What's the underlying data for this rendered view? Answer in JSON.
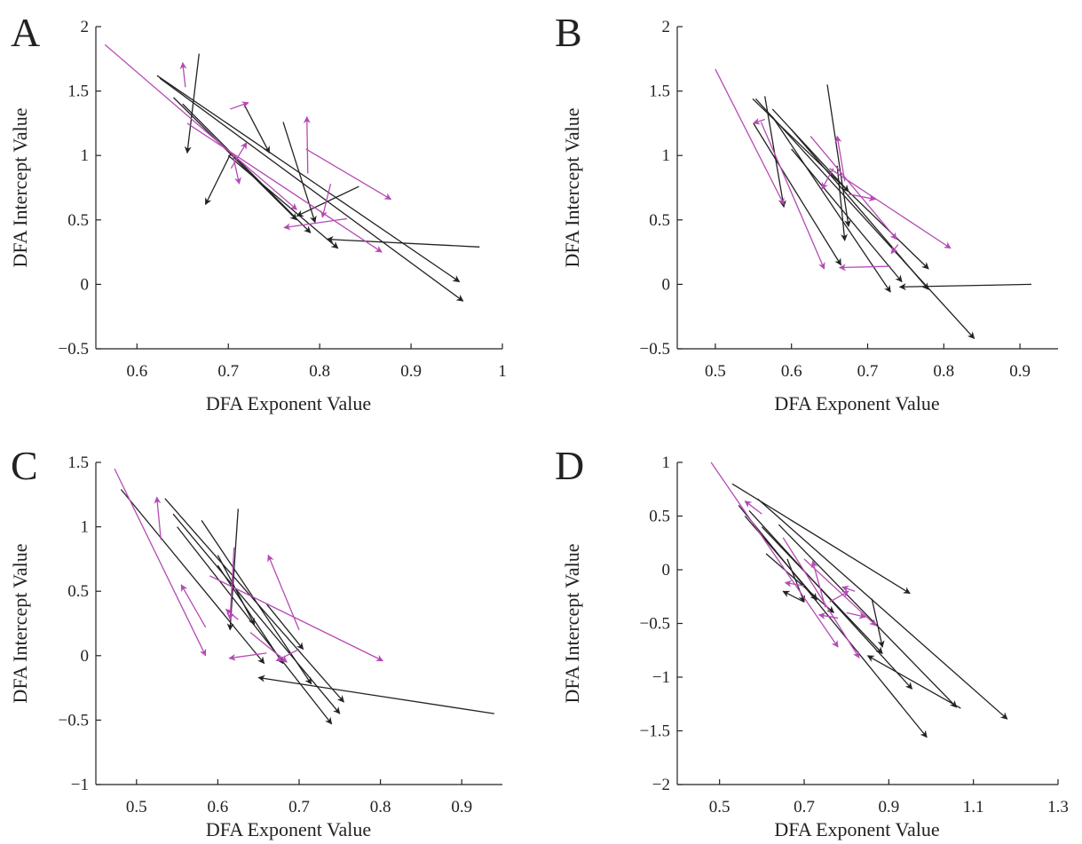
{
  "colors": {
    "black_series": "#222222",
    "magenta_series": "#b54ab5",
    "axis": "#222222"
  },
  "chart_data": [
    {
      "type": "scatter",
      "panel": "A",
      "xlabel": "DFA Exponent Value",
      "ylabel": "DFA Intercept Value",
      "xlim": [
        0.555,
        1.0
      ],
      "ylim": [
        -0.5,
        2.0
      ],
      "xticks": [
        0.6,
        0.7,
        0.8,
        0.9,
        1.0
      ],
      "xtick_labels": [
        "0.6",
        "0.7",
        "0.8",
        "0.9",
        "1"
      ],
      "yticks": [
        -0.5,
        0,
        0.5,
        1,
        1.5,
        2
      ],
      "ytick_labels": [
        "−0.5",
        "0",
        "0.5",
        "1",
        "1.5",
        "2"
      ],
      "grid": false,
      "series": [
        {
          "color": "black",
          "arrows": [
            {
              "x0": 0.622,
              "y0": 1.62,
              "x1": 0.953,
              "y1": 0.02
            },
            {
              "x0": 0.625,
              "y0": 1.6,
              "x1": 0.957,
              "y1": -0.13
            },
            {
              "x0": 0.668,
              "y0": 1.79,
              "x1": 0.655,
              "y1": 1.02
            },
            {
              "x0": 0.703,
              "y0": 1.02,
              "x1": 0.675,
              "y1": 0.62
            },
            {
              "x0": 0.717,
              "y0": 1.4,
              "x1": 0.745,
              "y1": 1.02
            },
            {
              "x0": 0.64,
              "y0": 1.45,
              "x1": 0.775,
              "y1": 0.5
            },
            {
              "x0": 0.65,
              "y0": 1.4,
              "x1": 0.79,
              "y1": 0.4
            },
            {
              "x0": 0.76,
              "y0": 1.26,
              "x1": 0.795,
              "y1": 0.48
            },
            {
              "x0": 0.843,
              "y0": 0.76,
              "x1": 0.775,
              "y1": 0.53
            },
            {
              "x0": 0.975,
              "y0": 0.29,
              "x1": 0.808,
              "y1": 0.35
            },
            {
              "x0": 0.7,
              "y0": 1.0,
              "x1": 0.82,
              "y1": 0.28
            }
          ]
        },
        {
          "color": "magenta",
          "arrows": [
            {
              "x0": 0.565,
              "y0": 1.86,
              "x1": 0.775,
              "y1": 0.58
            },
            {
              "x0": 0.653,
              "y0": 1.53,
              "x1": 0.65,
              "y1": 1.72
            },
            {
              "x0": 0.702,
              "y0": 1.36,
              "x1": 0.722,
              "y1": 1.41
            },
            {
              "x0": 0.655,
              "y0": 1.25,
              "x1": 0.868,
              "y1": 0.25
            },
            {
              "x0": 0.705,
              "y0": 1.0,
              "x1": 0.712,
              "y1": 0.78
            },
            {
              "x0": 0.703,
              "y0": 0.9,
              "x1": 0.72,
              "y1": 1.1
            },
            {
              "x0": 0.787,
              "y0": 0.86,
              "x1": 0.786,
              "y1": 1.3
            },
            {
              "x0": 0.785,
              "y0": 1.05,
              "x1": 0.878,
              "y1": 0.66
            },
            {
              "x0": 0.812,
              "y0": 0.78,
              "x1": 0.803,
              "y1": 0.52
            },
            {
              "x0": 0.83,
              "y0": 0.51,
              "x1": 0.761,
              "y1": 0.44
            }
          ]
        }
      ]
    },
    {
      "type": "scatter",
      "panel": "B",
      "xlabel": "DFA Exponent Value",
      "ylabel": "DFA Intercept Value",
      "xlim": [
        0.45,
        0.95
      ],
      "ylim": [
        -0.5,
        2.0
      ],
      "xticks": [
        0.5,
        0.6,
        0.7,
        0.8,
        0.9
      ],
      "xtick_labels": [
        "0.5",
        "0.6",
        "0.7",
        "0.8",
        "0.9"
      ],
      "yticks": [
        -0.5,
        0,
        0.5,
        1,
        1.5,
        2
      ],
      "ytick_labels": [
        "−0.5",
        "0",
        "0.5",
        "1",
        "1.5",
        "2"
      ],
      "grid": false,
      "series": [
        {
          "color": "black",
          "arrows": [
            {
              "x0": 0.553,
              "y0": 1.44,
              "x1": 0.84,
              "y1": -0.42
            },
            {
              "x0": 0.549,
              "y0": 1.44,
              "x1": 0.78,
              "y1": 0.12
            },
            {
              "x0": 0.565,
              "y0": 1.46,
              "x1": 0.59,
              "y1": 0.6
            },
            {
              "x0": 0.575,
              "y0": 1.36,
              "x1": 0.675,
              "y1": 0.72
            },
            {
              "x0": 0.647,
              "y0": 1.55,
              "x1": 0.675,
              "y1": 0.45
            },
            {
              "x0": 0.55,
              "y0": 1.25,
              "x1": 0.665,
              "y1": 0.15
            },
            {
              "x0": 0.575,
              "y0": 1.3,
              "x1": 0.73,
              "y1": -0.06
            },
            {
              "x0": 0.6,
              "y0": 1.2,
              "x1": 0.78,
              "y1": -0.04
            },
            {
              "x0": 0.915,
              "y0": 0.0,
              "x1": 0.742,
              "y1": -0.02
            },
            {
              "x0": 0.6,
              "y0": 1.05,
              "x1": 0.745,
              "y1": 0.02
            },
            {
              "x0": 0.66,
              "y0": 0.92,
              "x1": 0.67,
              "y1": 0.34
            }
          ]
        },
        {
          "color": "magenta",
          "arrows": [
            {
              "x0": 0.5,
              "y0": 1.67,
              "x1": 0.59,
              "y1": 0.62
            },
            {
              "x0": 0.56,
              "y0": 1.26,
              "x1": 0.643,
              "y1": 0.12
            },
            {
              "x0": 0.565,
              "y0": 1.28,
              "x1": 0.55,
              "y1": 1.25
            },
            {
              "x0": 0.625,
              "y0": 1.15,
              "x1": 0.738,
              "y1": 0.35
            },
            {
              "x0": 0.65,
              "y0": 0.9,
              "x1": 0.809,
              "y1": 0.28
            },
            {
              "x0": 0.73,
              "y0": 0.14,
              "x1": 0.663,
              "y1": 0.13
            },
            {
              "x0": 0.67,
              "y0": 0.8,
              "x1": 0.66,
              "y1": 1.15
            },
            {
              "x0": 0.675,
              "y0": 0.7,
              "x1": 0.71,
              "y1": 0.66
            },
            {
              "x0": 0.655,
              "y0": 0.9,
              "x1": 0.64,
              "y1": 0.74
            },
            {
              "x0": 0.74,
              "y0": 0.31,
              "x1": 0.731,
              "y1": 0.24
            }
          ]
        }
      ]
    },
    {
      "type": "scatter",
      "panel": "C",
      "xlabel": "DFA Exponent Value",
      "ylabel": "DFA Intercept Value",
      "xlim": [
        0.45,
        0.95
      ],
      "ylim": [
        -1.0,
        1.5
      ],
      "xticks": [
        0.5,
        0.6,
        0.7,
        0.8,
        0.9
      ],
      "xtick_labels": [
        "0.5",
        "0.6",
        "0.7",
        "0.8",
        "0.9"
      ],
      "yticks": [
        -1,
        -0.5,
        0,
        0.5,
        1,
        1.5
      ],
      "ytick_labels": [
        "−1",
        "−0.5",
        "0",
        "0.5",
        "1",
        "1.5"
      ],
      "grid": false,
      "series": [
        {
          "color": "black",
          "arrows": [
            {
              "x0": 0.481,
              "y0": 1.29,
              "x1": 0.657,
              "y1": -0.06
            },
            {
              "x0": 0.535,
              "y0": 1.22,
              "x1": 0.755,
              "y1": -0.36
            },
            {
              "x0": 0.545,
              "y0": 1.1,
              "x1": 0.75,
              "y1": -0.45
            },
            {
              "x0": 0.55,
              "y0": 1.0,
              "x1": 0.74,
              "y1": -0.53
            },
            {
              "x0": 0.625,
              "y0": 1.14,
              "x1": 0.615,
              "y1": 0.2
            },
            {
              "x0": 0.58,
              "y0": 1.05,
              "x1": 0.715,
              "y1": -0.22
            },
            {
              "x0": 0.94,
              "y0": -0.45,
              "x1": 0.65,
              "y1": -0.17
            },
            {
              "x0": 0.6,
              "y0": 0.78,
              "x1": 0.645,
              "y1": 0.24
            },
            {
              "x0": 0.6,
              "y0": 0.7,
              "x1": 0.68,
              "y1": -0.06
            },
            {
              "x0": 0.66,
              "y0": 0.4,
              "x1": 0.705,
              "y1": 0.05
            }
          ]
        },
        {
          "color": "magenta",
          "arrows": [
            {
              "x0": 0.473,
              "y0": 1.45,
              "x1": 0.585,
              "y1": 0.0
            },
            {
              "x0": 0.53,
              "y0": 0.9,
              "x1": 0.525,
              "y1": 1.23
            },
            {
              "x0": 0.59,
              "y0": 0.62,
              "x1": 0.803,
              "y1": -0.04
            },
            {
              "x0": 0.585,
              "y0": 0.22,
              "x1": 0.555,
              "y1": 0.55
            },
            {
              "x0": 0.62,
              "y0": 0.84,
              "x1": 0.615,
              "y1": 0.28
            },
            {
              "x0": 0.7,
              "y0": 0.2,
              "x1": 0.662,
              "y1": 0.78
            },
            {
              "x0": 0.66,
              "y0": 0.02,
              "x1": 0.614,
              "y1": -0.02
            },
            {
              "x0": 0.7,
              "y0": 0.05,
              "x1": 0.672,
              "y1": -0.04
            },
            {
              "x0": 0.64,
              "y0": 0.18,
              "x1": 0.685,
              "y1": -0.05
            },
            {
              "x0": 0.625,
              "y0": 0.28,
              "x1": 0.61,
              "y1": 0.36
            }
          ]
        }
      ]
    },
    {
      "type": "scatter",
      "panel": "D",
      "xlabel": "DFA Exponent Value",
      "ylabel": "DFA Intercept Value",
      "xlim": [
        0.4,
        1.3
      ],
      "ylim": [
        -2.0,
        1.0
      ],
      "xticks": [
        0.5,
        0.7,
        0.9,
        1.1,
        1.3
      ],
      "xtick_labels": [
        "0.5",
        "0.7",
        "0.9",
        "1.1",
        "1.3"
      ],
      "yticks": [
        -2,
        -1.5,
        -1,
        -0.5,
        0,
        0.5,
        1
      ],
      "ytick_labels": [
        "−2",
        "−1.5",
        "−1",
        "−0.5",
        "0",
        "0.5",
        "1"
      ],
      "grid": false,
      "series": [
        {
          "color": "black",
          "arrows": [
            {
              "x0": 0.53,
              "y0": 0.8,
              "x1": 0.95,
              "y1": -0.22
            },
            {
              "x0": 0.59,
              "y0": 0.66,
              "x1": 1.18,
              "y1": -1.39
            },
            {
              "x0": 0.545,
              "y0": 0.6,
              "x1": 0.99,
              "y1": -1.56
            },
            {
              "x0": 0.57,
              "y0": 0.55,
              "x1": 0.955,
              "y1": -1.11
            },
            {
              "x0": 0.64,
              "y0": 0.42,
              "x1": 1.06,
              "y1": -1.28
            },
            {
              "x0": 0.56,
              "y0": 0.5,
              "x1": 0.73,
              "y1": -0.28
            },
            {
              "x0": 0.61,
              "y0": 0.15,
              "x1": 0.77,
              "y1": -0.4
            },
            {
              "x0": 0.7,
              "y0": -0.3,
              "x1": 0.65,
              "y1": -0.2
            },
            {
              "x0": 0.86,
              "y0": -0.27,
              "x1": 0.885,
              "y1": -0.72
            },
            {
              "x0": 0.6,
              "y0": 0.4,
              "x1": 0.885,
              "y1": -0.78
            },
            {
              "x0": 1.07,
              "y0": -1.29,
              "x1": 0.85,
              "y1": -0.8
            },
            {
              "x0": 0.66,
              "y0": 0.1,
              "x1": 0.7,
              "y1": -0.3
            }
          ]
        },
        {
          "color": "magenta",
          "arrows": [
            {
              "x0": 0.48,
              "y0": 1.0,
              "x1": 0.78,
              "y1": -0.72
            },
            {
              "x0": 0.6,
              "y0": 0.52,
              "x1": 0.56,
              "y1": 0.64
            },
            {
              "x0": 0.65,
              "y0": 0.3,
              "x1": 0.83,
              "y1": -0.82
            },
            {
              "x0": 0.7,
              "y0": 0.1,
              "x1": 0.87,
              "y1": -0.52
            },
            {
              "x0": 0.7,
              "y0": -0.15,
              "x1": 0.655,
              "y1": -0.12
            },
            {
              "x0": 0.75,
              "y0": -0.35,
              "x1": 0.72,
              "y1": 0.08
            },
            {
              "x0": 0.78,
              "y0": -0.45,
              "x1": 0.735,
              "y1": -0.42
            },
            {
              "x0": 0.8,
              "y0": -0.4,
              "x1": 0.845,
              "y1": -0.44
            },
            {
              "x0": 0.82,
              "y0": -0.2,
              "x1": 0.79,
              "y1": -0.16
            },
            {
              "x0": 0.76,
              "y0": -0.3,
              "x1": 0.805,
              "y1": -0.2
            }
          ]
        }
      ]
    }
  ]
}
